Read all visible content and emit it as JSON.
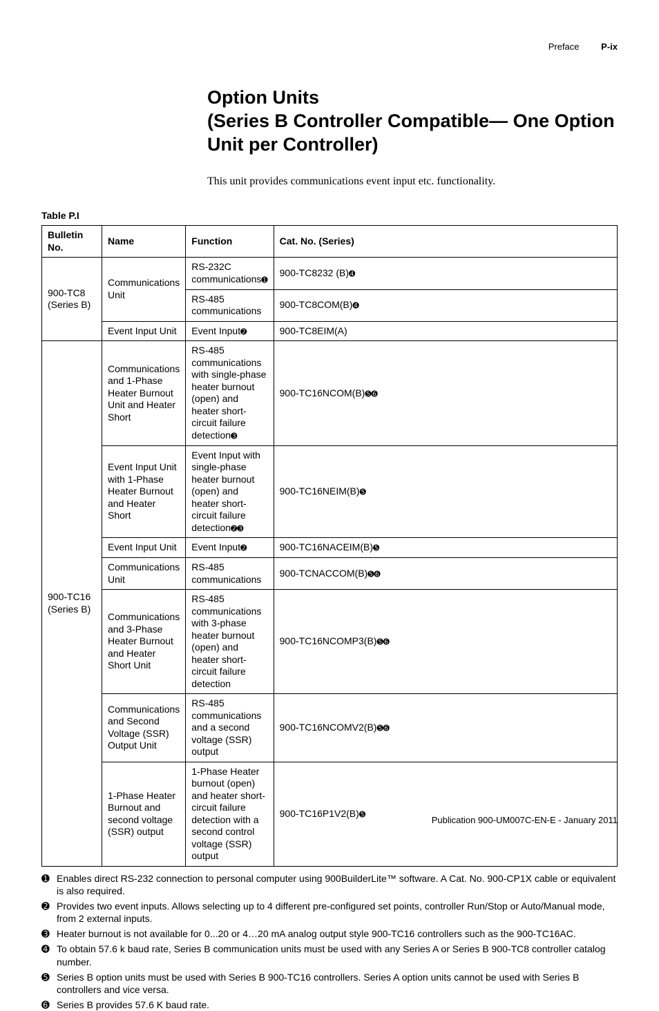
{
  "header": {
    "section": "Preface",
    "page_num": "P-ix"
  },
  "title_line1": "Option Units",
  "title_line2": "(Series B Controller Compatible— One Option Unit per Controller)",
  "intro": "This unit provides communications event input etc. functionality.",
  "table_label": "Table P.I",
  "columns": {
    "c1": "Bulletin No.",
    "c2": "Name",
    "c3": "Function",
    "c4": "Cat. No. (Series)"
  },
  "group1": {
    "bulletin": "900-TC8 (Series B)"
  },
  "group2": {
    "bulletin": "900-TC16 (Series B)"
  },
  "rows": {
    "r1": {
      "name": "Communications Unit",
      "func": "RS-232C communications",
      "func_refs": "➊",
      "cat": "900-TC8232 (B)",
      "cat_refs": "➍"
    },
    "r2": {
      "func": "RS-485 communications",
      "cat": "900-TC8COM(B)",
      "cat_refs": "➍"
    },
    "r3": {
      "name": "Event Input Unit",
      "func": "Event Input",
      "func_refs": "➋",
      "cat": "900-TC8EIM(A)"
    },
    "r4": {
      "name": "Communications and 1-Phase Heater Burnout Unit and Heater Short",
      "func": "RS-485 communications with single-phase heater burnout (open) and heater short-circuit failure detection",
      "func_refs": "➌",
      "cat": "900-TC16NCOM(B)",
      "cat_refs": "➎➏"
    },
    "r5": {
      "name": "Event Input Unit with 1-Phase Heater Burnout and Heater Short",
      "func": "Event Input with single-phase heater burnout (open) and heater short-circuit failure detection",
      "func_refs": "➋➌",
      "cat": "900-TC16NEIM(B)",
      "cat_refs": "➎"
    },
    "r6": {
      "name": "Event Input Unit",
      "func": "Event Input",
      "func_refs": "➋",
      "cat": "900-TC16NACEIM(B)",
      "cat_refs": "➎"
    },
    "r7": {
      "name": "Communications Unit",
      "func": "RS-485 communications",
      "cat": "900-TCNACCOM(B)",
      "cat_refs": "➎➏"
    },
    "r8": {
      "name": "Communications and 3-Phase Heater Burnout and Heater Short Unit",
      "func": "RS-485 communications with 3-phase heater burnout (open) and heater short-circuit failure detection",
      "cat": "900-TC16NCOMP3(B)",
      "cat_refs": "➎➏"
    },
    "r9": {
      "name": "Communications and Second Voltage (SSR) Output Unit",
      "func": "RS-485 communications and a second voltage (SSR) output",
      "cat": "900-TC16NCOMV2(B)",
      "cat_refs": "➎➏"
    },
    "r10": {
      "name": "1-Phase Heater Burnout and second voltage (SSR) output",
      "func": "1-Phase Heater burnout (open) and heater short-circuit failure detection with a second control voltage (SSR) output",
      "cat": "900-TC16P1V2(B)",
      "cat_refs": "➎"
    }
  },
  "footnotes": {
    "f1": {
      "mark": "➊",
      "text": "Enables direct RS-232 connection to personal computer using 900BuilderLite™ software. A Cat. No. 900-CP1X cable or equivalent is also required."
    },
    "f2": {
      "mark": "➋",
      "text": "Provides two event inputs. Allows selecting up to 4 different pre-configured set points, controller Run/Stop or Auto/Manual mode, from 2 external inputs."
    },
    "f3": {
      "mark": "➌",
      "text": "Heater burnout is not available for 0...20 or 4…20 mA analog output style 900-TC16 controllers such as the 900-TC16AC."
    },
    "f4": {
      "mark": "➍",
      "text": "To obtain 57.6 k baud rate, Series B communication units must be used with any Series A or Series B 900-TC8 controller catalog number."
    },
    "f5": {
      "mark": "➎",
      "text": "Series B option units must be used with Series B 900-TC16 controllers. Series A option units cannot be used with Series B controllers and vice versa."
    },
    "f6": {
      "mark": "➏",
      "text": "Series B provides 57.6 K baud rate."
    }
  },
  "footer": "Publication 900-UM007C-EN-E - January 2011"
}
